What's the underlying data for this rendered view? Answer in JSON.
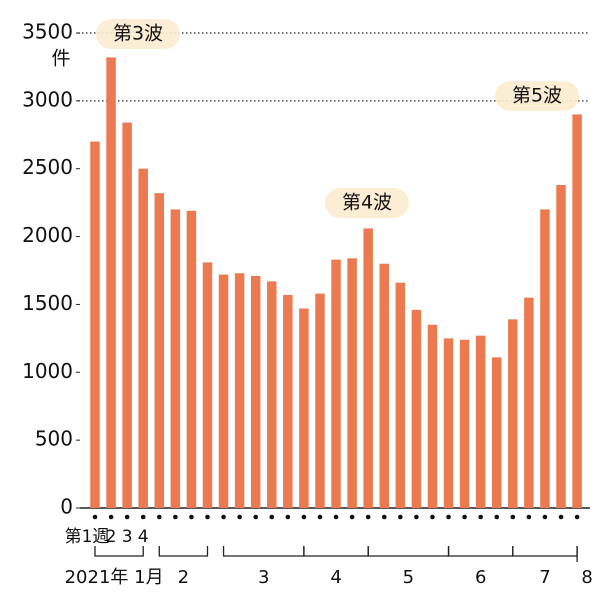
{
  "chart_data": {
    "type": "bar",
    "y_unit": "件",
    "categories": [
      "第1週",
      "2",
      "3",
      "4",
      null,
      null,
      null,
      null,
      null,
      null,
      null,
      null,
      null,
      null,
      null,
      null,
      null,
      null,
      null,
      null,
      null,
      null,
      null,
      null,
      null,
      null,
      null,
      null,
      null,
      null,
      null
    ],
    "values": [
      2700,
      3320,
      2840,
      2500,
      2320,
      2200,
      2190,
      1810,
      1720,
      1730,
      1710,
      1670,
      1570,
      1470,
      1580,
      1830,
      1840,
      2060,
      1800,
      1660,
      1460,
      1350,
      1250,
      1240,
      1270,
      1110,
      1390,
      1550,
      2200,
      2380,
      2900
    ],
    "color": "#ec7a50",
    "month_labels": [
      "2021年 1月",
      "2",
      "3",
      "4",
      "5",
      "6",
      "7",
      "8"
    ],
    "annotations": [
      "第3波",
      "第4波",
      "第5波"
    ],
    "ylim": [
      0,
      3500
    ],
    "yticks": [
      0,
      500,
      1000,
      1500,
      2000,
      2500,
      3000,
      3500
    ],
    "gridlines": [
      3000,
      3500
    ]
  }
}
